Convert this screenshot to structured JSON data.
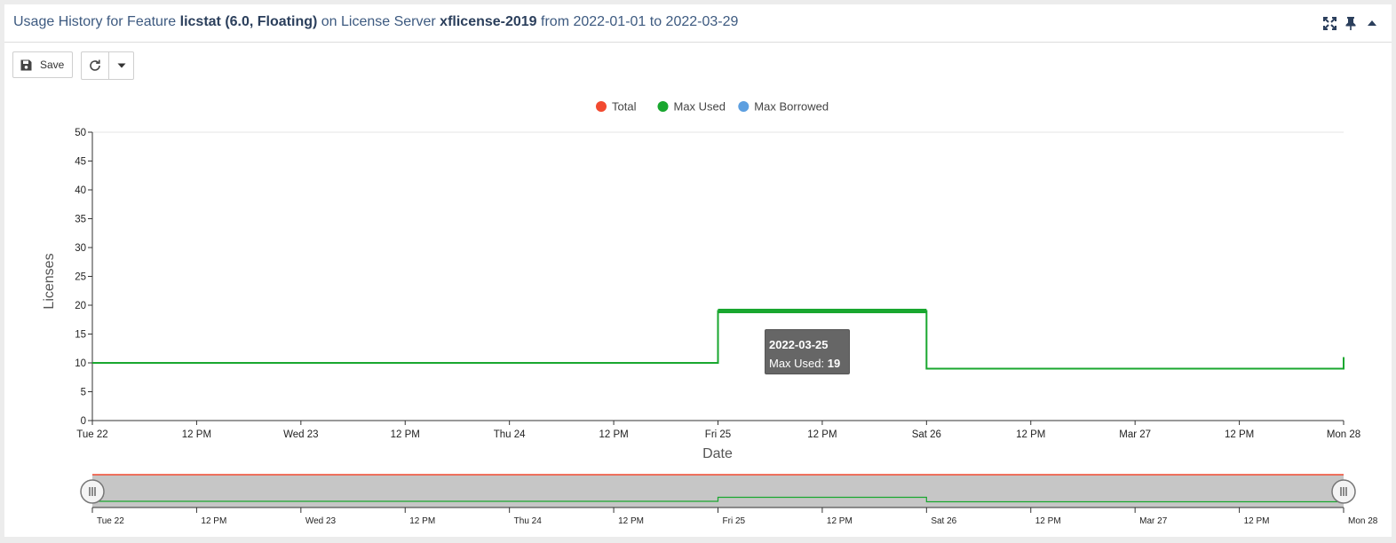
{
  "panel": {
    "title_prefix": "Usage History for Feature ",
    "feature": "licstat (6.0, Floating)",
    "title_mid": " on License Server ",
    "server": "xflicense-2019",
    "title_suffix": " from 2022-01-01 to 2022-03-29"
  },
  "toolbar": {
    "save_label": "Save"
  },
  "icons": {
    "expand": "expand-icon",
    "pin": "pin-icon",
    "collapse": "caret-up-icon",
    "save": "floppy-disk-icon",
    "refresh": "refresh-icon",
    "dropdown": "caret-down-icon"
  },
  "tooltip": {
    "date": "2022-03-25",
    "label": "Max Used: ",
    "value": "19"
  },
  "chart_data": {
    "type": "line",
    "step": true,
    "xlabel": "Date",
    "ylabel": "Licenses",
    "ylim": [
      0,
      50
    ],
    "y_ticks": [
      0,
      5,
      10,
      15,
      20,
      25,
      30,
      35,
      40,
      45,
      50
    ],
    "xlim": [
      "2022-03-22",
      "2022-03-28"
    ],
    "x_ticks": [
      {
        "t": "2022-03-22 00:00",
        "label": "Tue 22"
      },
      {
        "t": "2022-03-22 12:00",
        "label": "12 PM"
      },
      {
        "t": "2022-03-23 00:00",
        "label": "Wed 23"
      },
      {
        "t": "2022-03-23 12:00",
        "label": "12 PM"
      },
      {
        "t": "2022-03-24 00:00",
        "label": "Thu 24"
      },
      {
        "t": "2022-03-24 12:00",
        "label": "12 PM"
      },
      {
        "t": "2022-03-25 00:00",
        "label": "Fri 25"
      },
      {
        "t": "2022-03-25 12:00",
        "label": "12 PM"
      },
      {
        "t": "2022-03-26 00:00",
        "label": "Sat 26"
      },
      {
        "t": "2022-03-26 12:00",
        "label": "12 PM"
      },
      {
        "t": "2022-03-27 00:00",
        "label": "Mar 27"
      },
      {
        "t": "2022-03-27 12:00",
        "label": "12 PM"
      },
      {
        "t": "2022-03-28 00:00",
        "label": "Mon 28"
      }
    ],
    "legend": {
      "placement": "top-center"
    },
    "grid": false,
    "series": [
      {
        "name": "Total",
        "color": "#f24a30",
        "points": []
      },
      {
        "name": "Max Used",
        "color": "#19a72f",
        "points": [
          {
            "x": "2022-03-22",
            "y": 10
          },
          {
            "x": "2022-03-23",
            "y": 10
          },
          {
            "x": "2022-03-24",
            "y": 10
          },
          {
            "x": "2022-03-25",
            "y": 19
          },
          {
            "x": "2022-03-26",
            "y": 9
          },
          {
            "x": "2022-03-27",
            "y": 9
          },
          {
            "x": "2022-03-28",
            "y": 11
          }
        ]
      },
      {
        "name": "Max Borrowed",
        "color": "#5d9fe0",
        "points": []
      }
    ],
    "highlight": {
      "series": "Max Used",
      "x": "2022-03-25",
      "y": 19
    },
    "navigator": {
      "range": [
        "2022-03-22",
        "2022-03-28"
      ],
      "x_ticks": [
        {
          "t": "2022-03-22 00:00",
          "label": "Tue 22"
        },
        {
          "t": "2022-03-22 12:00",
          "label": "12 PM"
        },
        {
          "t": "2022-03-23 00:00",
          "label": "Wed 23"
        },
        {
          "t": "2022-03-23 12:00",
          "label": "12 PM"
        },
        {
          "t": "2022-03-24 00:00",
          "label": "Thu 24"
        },
        {
          "t": "2022-03-24 12:00",
          "label": "12 PM"
        },
        {
          "t": "2022-03-25 00:00",
          "label": "Fri 25"
        },
        {
          "t": "2022-03-25 12:00",
          "label": "12 PM"
        },
        {
          "t": "2022-03-26 00:00",
          "label": "Sat 26"
        },
        {
          "t": "2022-03-26 12:00",
          "label": "12 PM"
        },
        {
          "t": "2022-03-27 00:00",
          "label": "Mar 27"
        },
        {
          "t": "2022-03-27 12:00",
          "label": "12 PM"
        },
        {
          "t": "2022-03-28 00:00",
          "label": "Mon 28"
        }
      ]
    }
  }
}
